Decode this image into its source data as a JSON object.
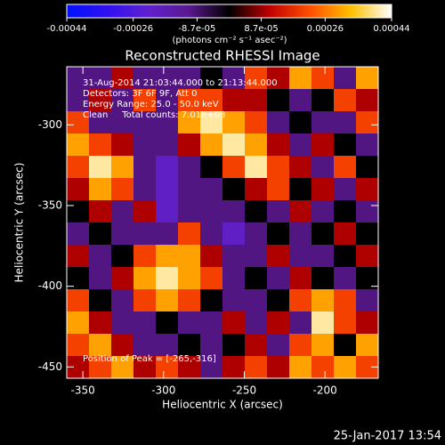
{
  "chart_data": {
    "type": "heatmap",
    "title": "Reconstructed RHESSI Image",
    "x_label": "Heliocentric X (arcsec)",
    "y_label": "Heliocentric Y (arcsec)",
    "xlim": [
      -360,
      -167
    ],
    "ylim": [
      -457,
      -264
    ],
    "xticks": [
      -350,
      -300,
      -250,
      -200
    ],
    "yticks": [
      -450,
      -400,
      -350,
      -300
    ],
    "colorbar_lim": [
      -0.00044,
      0.00044
    ],
    "colorbar_ticks": [
      -0.00044,
      -0.00026,
      {
        "value": -8.7e-05,
        "label": "-8.7e-05"
      },
      {
        "value": 8.7e-05,
        "label": "8.7e-05"
      },
      0.00026,
      0.00044
    ],
    "colorbar_label": "(photons cm⁻² s⁻¹ asec⁻²)",
    "colormap": [
      "#0010ff",
      "#3010f0",
      "#6020d0",
      "#5a1890",
      "#000000",
      "#c00000",
      "#ff5000",
      "#ffc000",
      "#ffffff"
    ],
    "annotations": [
      "31-Aug-2014 21:03:44.000 to 21:13:44.000",
      "Detectors: 3F 6F 9F, Att 0",
      "Energy Range: 25.0 - 50.0 keV",
      "Clean     Total counts: 7.01E+03"
    ],
    "peak_note": "Position of Peak = [-265,-316]",
    "timestamp": "25-Jan-2017 13:54",
    "z": [
      [
        -0.0001,
        -0.0001,
        0.0001,
        -0.0001,
        -0.0001,
        -0.0001,
        0,
        -0.0001,
        0.0002,
        0.0001,
        0.0003,
        0.0002,
        -0.0001,
        0.0003
      ],
      [
        -0.0001,
        0.0001,
        -0.0001,
        0.0002,
        -0.0001,
        0.0002,
        0.0002,
        0.0001,
        0.0001,
        0,
        -0.0001,
        0,
        0.0002,
        0.0001
      ],
      [
        0.0002,
        -0.0001,
        -0.0001,
        -0.0001,
        -0.0001,
        0.0003,
        0.0004,
        0.0003,
        0.0002,
        -0.0001,
        0,
        -0.0001,
        -0.0001,
        0.0002
      ],
      [
        0.0003,
        0.0002,
        0.0001,
        -0.0001,
        -0.0001,
        0.0001,
        0.0003,
        0.0004,
        0.0003,
        0.0001,
        -0.0001,
        0.0001,
        0,
        -0.0001
      ],
      [
        0.0002,
        0.0004,
        0.0003,
        -0.0001,
        -0.0002,
        -0.0001,
        0,
        0.0002,
        0.0004,
        0.0002,
        0.0001,
        -0.0001,
        0.0002,
        0
      ],
      [
        0.0001,
        0.0003,
        0.0002,
        -0.0001,
        -0.0002,
        -0.0001,
        -0.0001,
        0,
        0.0001,
        0.0002,
        0,
        0.0001,
        -0.0001,
        0.0001
      ],
      [
        0,
        0.0001,
        -0.0001,
        0.0001,
        -0.0002,
        -0.0001,
        -0.0001,
        -0.0001,
        0,
        -0.0001,
        0.0001,
        -0.0001,
        0,
        -0.0001
      ],
      [
        -0.0001,
        0,
        -0.0001,
        -0.0001,
        -0.0001,
        0.0002,
        -0.0001,
        -0.0002,
        -0.0001,
        0,
        -0.0001,
        0,
        0.0001,
        0
      ],
      [
        0.0001,
        -0.0001,
        0,
        0.0002,
        0.0003,
        0.0003,
        0.0001,
        -0.0001,
        -0.0001,
        0.0001,
        -0.0001,
        -0.0001,
        0,
        0.0001
      ],
      [
        0,
        -0.0001,
        0.0001,
        0.0003,
        0.0004,
        0.0003,
        0.0002,
        -0.0001,
        0,
        -0.0001,
        0.0001,
        0,
        -0.0001,
        0
      ],
      [
        0.0002,
        0,
        -0.0001,
        0.0002,
        0.0003,
        0.0002,
        0,
        -0.0001,
        -0.0001,
        0,
        0.0002,
        0.0003,
        0.0002,
        -0.0001
      ],
      [
        0.0003,
        0.0001,
        -0.0001,
        -0.0001,
        0,
        -0.0001,
        -0.0001,
        0.0001,
        -0.0001,
        0.0001,
        -0.0001,
        0.0004,
        0.0002,
        0.0001
      ],
      [
        0.0002,
        0.0003,
        0.0001,
        -0.0001,
        -0.0001,
        0,
        -0.0001,
        0,
        0.0001,
        -0.0001,
        0.0002,
        0.0003,
        0,
        0.0003
      ],
      [
        0.0001,
        0.0002,
        0.0003,
        0.0001,
        0.0002,
        0.0001,
        -0.0001,
        0.0001,
        0.0002,
        0.0001,
        0.0003,
        0.0002,
        0.0003,
        0.0002
      ]
    ]
  }
}
